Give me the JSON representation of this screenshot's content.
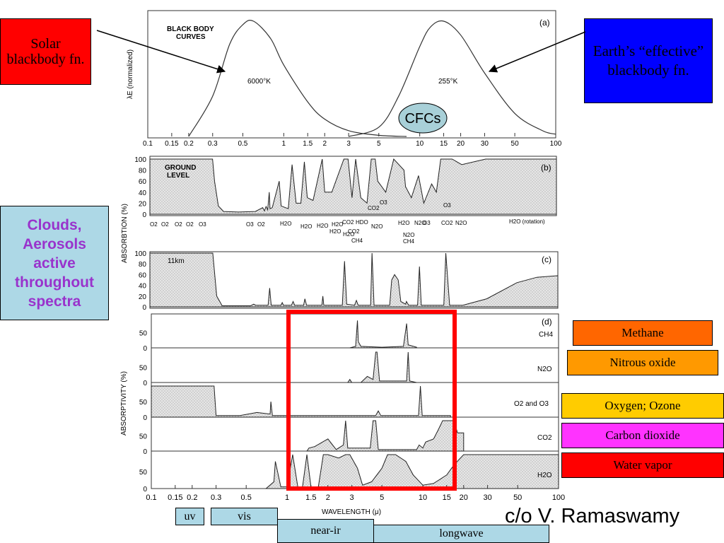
{
  "chart_data": [
    {
      "type": "line",
      "panel": "(a)",
      "title": "BLACK BODY CURVES",
      "ylabel": "λE_λ (normalized)",
      "xscale": "log",
      "xlim": [
        0.1,
        100
      ],
      "x_ticks": [
        "0.1",
        "0.15",
        "0.2",
        "0.3",
        "0.5",
        "1",
        "1.5",
        "2",
        "3",
        "5",
        "10",
        "15",
        "20",
        "30",
        "50",
        "100"
      ],
      "series": [
        {
          "name": "6000°K",
          "x": [
            0.2,
            0.3,
            0.4,
            0.5,
            0.6,
            0.8,
            1,
            1.5,
            2,
            3,
            5,
            8
          ],
          "y": [
            0,
            0.35,
            0.8,
            0.97,
            1.0,
            0.85,
            0.62,
            0.3,
            0.15,
            0.05,
            0.01,
            0
          ]
        },
        {
          "name": "255°K",
          "x": [
            3,
            5,
            7,
            10,
            12,
            15,
            20,
            30,
            50,
            80,
            100
          ],
          "y": [
            0,
            0.08,
            0.35,
            0.78,
            0.95,
            1.0,
            0.88,
            0.55,
            0.2,
            0.05,
            0.02
          ]
        }
      ]
    },
    {
      "type": "area",
      "panel": "(b)",
      "title": "GROUND LEVEL",
      "ylabel": "ABSORBTION (%)",
      "ylim": [
        0,
        100
      ],
      "y_ticks": [
        "100",
        "80",
        "60",
        "40",
        "20",
        "0"
      ],
      "absorbers": [
        "O2",
        "O2",
        "O2",
        "O2",
        "O3",
        "O3",
        "O2",
        "H2O",
        "H2O",
        "H2O",
        "H2O",
        "H2O",
        "CO2",
        "H2O",
        "CO2",
        "HDO",
        "CH4",
        "N2O",
        "CO2",
        "O3",
        "H2O",
        "N2O",
        "N2O",
        "CH4",
        "O3",
        "CO2",
        "O3",
        "N2O",
        "H2O (rotation)"
      ]
    },
    {
      "type": "area",
      "panel": "(c)",
      "title": "11km",
      "ylabel": "ABSORPTION (%)",
      "ylim": [
        0,
        100
      ],
      "y_ticks": [
        "100",
        "80",
        "60",
        "40",
        "20",
        "0"
      ]
    },
    {
      "type": "area",
      "panel": "(d)",
      "ylabel": "ABSORPTIVITY (%)",
      "xlabel": "WAVELENGTH (μ)",
      "xscale": "log",
      "xlim": [
        0.1,
        100
      ],
      "x_ticks": [
        "0.1",
        "0.15",
        "0.2",
        "0.3",
        "0.5",
        "1",
        "1.5",
        "2",
        "3",
        "5",
        "10",
        "15",
        "20",
        "30",
        "50",
        "100"
      ],
      "y_ticks": [
        "50",
        "0"
      ],
      "series": [
        {
          "name": "CH4"
        },
        {
          "name": "N2O"
        },
        {
          "name": "O2 and O3"
        },
        {
          "name": "CO2"
        },
        {
          "name": "H2O"
        }
      ]
    }
  ],
  "labels": {
    "solar": "Solar blackbody fn.",
    "earth": "Earth’s “effective” blackbody fn.",
    "cfcs": "CFCs",
    "clouds": "Clouds, Aerosols active throughout spectra",
    "credit": "c/o V. Ramaswamy"
  },
  "legend": [
    {
      "text": "Methane",
      "color": "#ff6600"
    },
    {
      "text": "Nitrous oxide",
      "color": "#ff9900"
    },
    {
      "text": "Oxygen; Ozone",
      "color": "#ffcc00"
    },
    {
      "text": "Carbon dioxide",
      "color": "#ff33ff"
    },
    {
      "text": "Water vapor",
      "color": "#ff0000"
    }
  ],
  "bands": {
    "uv": "uv",
    "vis": "vis",
    "nearir": "near-ir",
    "longwave": "longwave"
  },
  "colors": {
    "solar_box": "#ff0000",
    "earth_box": "#0000ff",
    "clouds_box": "#add8e6",
    "clouds_text": "#9933cc",
    "band_box": "#add8e6",
    "highlight": "#ff0000",
    "cfc_bubble": "#a8d0d8"
  }
}
